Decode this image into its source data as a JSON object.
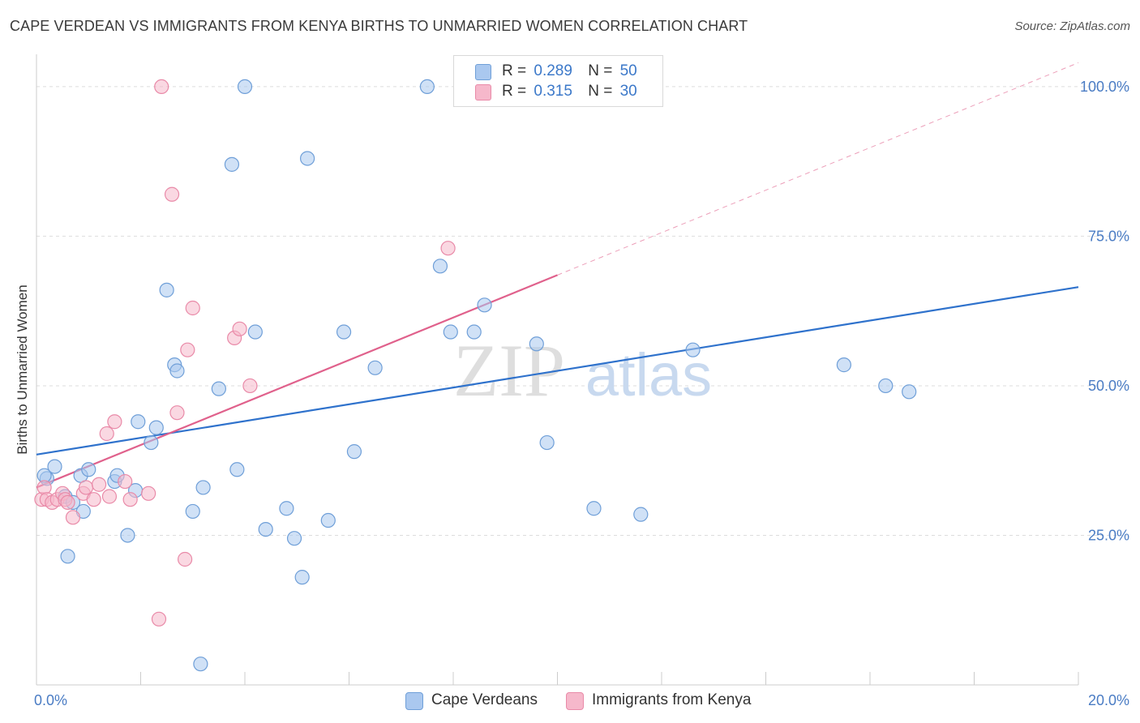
{
  "header": {
    "title": "CAPE VERDEAN VS IMMIGRANTS FROM KENYA BIRTHS TO UNMARRIED WOMEN CORRELATION CHART",
    "source": "Source: ZipAtlas.com"
  },
  "watermark": {
    "zip": "ZIP",
    "atlas": "atlas"
  },
  "stats": [
    {
      "r_label": "R =",
      "r_value": "0.289",
      "n_label": "N =",
      "n_value": "50",
      "color": "#aac8ef"
    },
    {
      "r_label": "R =",
      "r_value": "0.315",
      "n_label": "N =",
      "n_value": "30",
      "color": "#f6b8cb"
    }
  ],
  "chart_data": {
    "type": "scatter",
    "title": "CAPE VERDEAN VS IMMIGRANTS FROM KENYA BIRTHS TO UNMARRIED WOMEN CORRELATION CHART",
    "xlabel": "",
    "ylabel": "Births to Unmarried Women",
    "xlim": [
      0,
      20
    ],
    "ylim": [
      0,
      105
    ],
    "x_tick_labels": [
      "0.0%",
      "20.0%"
    ],
    "y_ticks": [
      25,
      50,
      75,
      100
    ],
    "y_tick_labels": [
      "25.0%",
      "50.0%",
      "75.0%",
      "100.0%"
    ],
    "grid": true,
    "legend_position": "bottom",
    "series": [
      {
        "name": "Cape Verdeans",
        "color": "#aac8ef",
        "stroke": "#6f9fd8",
        "trend_color": "#2f72cc",
        "trend": {
          "x0": 0,
          "y0": 38.5,
          "x1": 20,
          "y1": 66.5
        },
        "points": [
          [
            0.2,
            34.5
          ],
          [
            0.35,
            36.5
          ],
          [
            0.55,
            31.5
          ],
          [
            0.6,
            21.5
          ],
          [
            0.7,
            30.5
          ],
          [
            0.85,
            35
          ],
          [
            0.9,
            29
          ],
          [
            1.0,
            36
          ],
          [
            1.5,
            34
          ],
          [
            1.55,
            35
          ],
          [
            1.75,
            25
          ],
          [
            1.9,
            32.5
          ],
          [
            1.95,
            44
          ],
          [
            2.2,
            40.5
          ],
          [
            2.3,
            43
          ],
          [
            2.5,
            66
          ],
          [
            2.65,
            53.5
          ],
          [
            2.7,
            52.5
          ],
          [
            3.0,
            29
          ],
          [
            3.15,
            3.5
          ],
          [
            3.2,
            33
          ],
          [
            3.5,
            49.5
          ],
          [
            3.75,
            87
          ],
          [
            3.85,
            36
          ],
          [
            4.0,
            100
          ],
          [
            4.2,
            59
          ],
          [
            4.4,
            26
          ],
          [
            4.8,
            29.5
          ],
          [
            4.95,
            24.5
          ],
          [
            5.1,
            18
          ],
          [
            5.2,
            88
          ],
          [
            5.6,
            27.5
          ],
          [
            5.9,
            59
          ],
          [
            6.1,
            39
          ],
          [
            6.5,
            53
          ],
          [
            7.5,
            100
          ],
          [
            7.75,
            70
          ],
          [
            7.95,
            59
          ],
          [
            8.4,
            59
          ],
          [
            8.6,
            63.5
          ],
          [
            9.6,
            57
          ],
          [
            9.8,
            40.5
          ],
          [
            10.7,
            29.5
          ],
          [
            11.6,
            28.5
          ],
          [
            12.6,
            56
          ],
          [
            15.5,
            53.5
          ],
          [
            16.3,
            50
          ],
          [
            16.75,
            49
          ],
          [
            9.0,
            100
          ],
          [
            0.15,
            35
          ]
        ]
      },
      {
        "name": "Immigrants from Kenya",
        "color": "#f6b8cb",
        "stroke": "#e98aa8",
        "trend_color": "#e0618c",
        "trend": {
          "x0": 0,
          "y0": 33,
          "x1": 10,
          "y1": 68.5
        },
        "trend_extension": {
          "x0": 10,
          "y0": 68.5,
          "x1": 20,
          "y1": 104
        },
        "points": [
          [
            0.1,
            31
          ],
          [
            0.15,
            33
          ],
          [
            0.2,
            31
          ],
          [
            0.3,
            30.5
          ],
          [
            0.4,
            31
          ],
          [
            0.5,
            32
          ],
          [
            0.55,
            31
          ],
          [
            0.6,
            30.5
          ],
          [
            0.7,
            28
          ],
          [
            0.9,
            32
          ],
          [
            0.95,
            33
          ],
          [
            1.1,
            31
          ],
          [
            1.2,
            33.5
          ],
          [
            1.35,
            42
          ],
          [
            1.4,
            31.5
          ],
          [
            1.5,
            44
          ],
          [
            1.7,
            34
          ],
          [
            1.8,
            31
          ],
          [
            2.15,
            32
          ],
          [
            2.35,
            11
          ],
          [
            2.4,
            100
          ],
          [
            2.6,
            82
          ],
          [
            2.7,
            45.5
          ],
          [
            2.85,
            21
          ],
          [
            2.9,
            56
          ],
          [
            3.0,
            63
          ],
          [
            3.8,
            58
          ],
          [
            3.9,
            59.5
          ],
          [
            4.1,
            50
          ],
          [
            7.9,
            73
          ]
        ]
      }
    ]
  },
  "legend": [
    {
      "label": "Cape Verdeans",
      "color": "#aac8ef"
    },
    {
      "label": "Immigrants from Kenya",
      "color": "#f6b8cb"
    }
  ]
}
